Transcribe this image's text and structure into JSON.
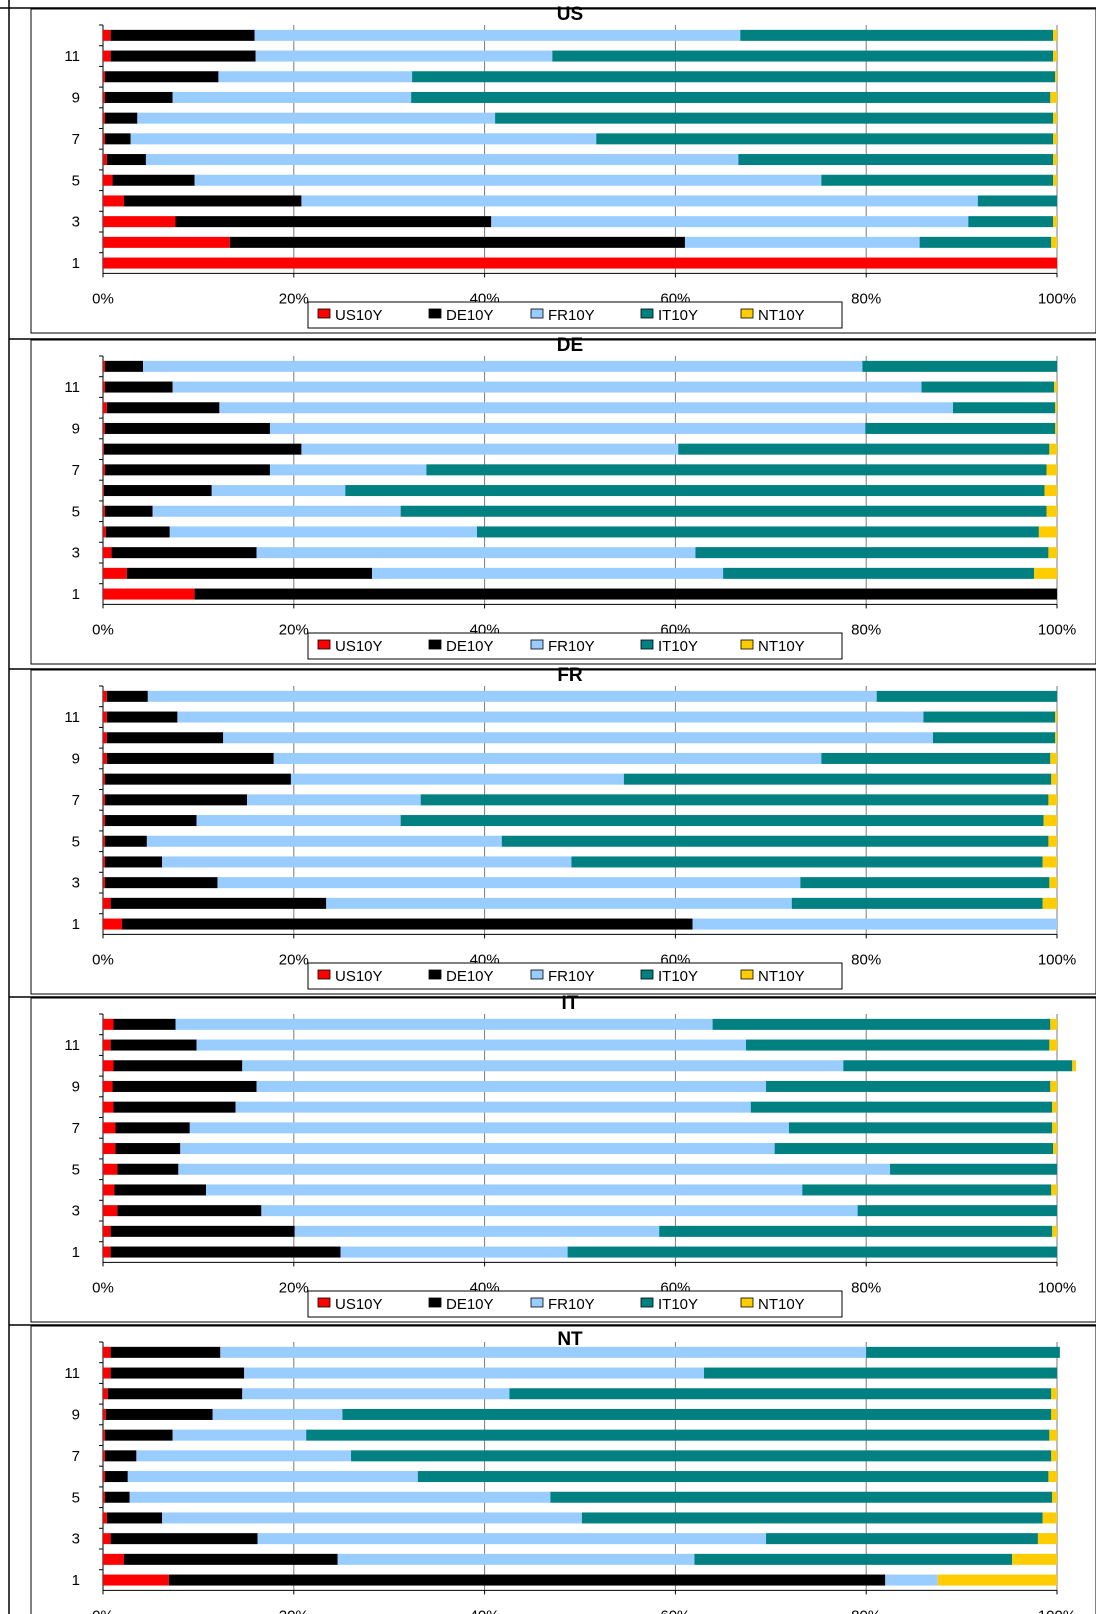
{
  "legend_labels": [
    "US10Y",
    "DE10Y",
    "FR10Y",
    "IT10Y",
    "NT10Y"
  ],
  "colors": {
    "US10Y": "#ff0000",
    "DE10Y": "#000000",
    "FR10Y": "#99ccff",
    "IT10Y": "#008080",
    "NT10Y": "#ffcc00"
  },
  "y_tick_labels": [
    "1",
    "3",
    "5",
    "7",
    "9",
    "11"
  ],
  "x_tick_labels": [
    "0%",
    "20%",
    "40%",
    "60%",
    "80%",
    "100%"
  ],
  "chart_data": [
    {
      "type": "bar",
      "stacked": "percent",
      "orientation": "horizontal",
      "title": "US",
      "categories": [
        1,
        2,
        3,
        4,
        5,
        6,
        7,
        8,
        9,
        10,
        11,
        12
      ],
      "xlim": [
        0,
        100
      ],
      "legend": "bottom",
      "grid": true,
      "series": [
        {
          "name": "US10Y",
          "values": [
            100,
            13.3,
            7.6,
            2.2,
            1.0,
            0.4,
            0.2,
            0.2,
            0.2,
            0.2,
            0.8,
            0.8
          ]
        },
        {
          "name": "DE10Y",
          "values": [
            0,
            47.7,
            33.1,
            18.6,
            8.6,
            4.1,
            2.7,
            3.4,
            7.1,
            11.9,
            15.2,
            15.1
          ]
        },
        {
          "name": "FR10Y",
          "values": [
            0,
            24.6,
            50.0,
            70.9,
            65.7,
            62.1,
            48.8,
            37.5,
            25.0,
            20.3,
            31.1,
            50.9
          ]
        },
        {
          "name": "IT10Y",
          "values": [
            0,
            13.8,
            8.9,
            8.3,
            24.3,
            33.0,
            47.9,
            58.5,
            67.0,
            67.4,
            52.5,
            32.8
          ]
        },
        {
          "name": "NT10Y",
          "values": [
            0,
            0.6,
            0.4,
            0.0,
            0.4,
            0.4,
            0.4,
            0.4,
            0.7,
            0.2,
            0.4,
            0.4
          ]
        }
      ]
    },
    {
      "type": "bar",
      "stacked": "percent",
      "orientation": "horizontal",
      "title": "DE",
      "categories": [
        1,
        2,
        3,
        4,
        5,
        6,
        7,
        8,
        9,
        10,
        11,
        12
      ],
      "xlim": [
        0,
        100
      ],
      "legend": "bottom",
      "grid": true,
      "series": [
        {
          "name": "US10Y",
          "values": [
            9.6,
            2.5,
            0.9,
            0.3,
            0.2,
            0.1,
            0.2,
            0.1,
            0.2,
            0.4,
            0.2,
            0.2
          ]
        },
        {
          "name": "DE10Y",
          "values": [
            90.4,
            25.7,
            15.2,
            6.7,
            5.0,
            11.3,
            17.3,
            20.7,
            17.3,
            11.8,
            7.1,
            4.0
          ]
        },
        {
          "name": "FR10Y",
          "values": [
            0,
            36.8,
            46.0,
            32.2,
            26.0,
            14.0,
            16.4,
            39.5,
            62.4,
            76.9,
            78.5,
            75.4
          ]
        },
        {
          "name": "IT10Y",
          "values": [
            0,
            32.6,
            37.0,
            58.9,
            67.7,
            73.3,
            65.0,
            38.9,
            19.9,
            10.7,
            13.9,
            20.4
          ]
        },
        {
          "name": "NT10Y",
          "values": [
            0,
            2.4,
            0.9,
            1.9,
            1.1,
            1.3,
            1.1,
            0.8,
            0.2,
            0.2,
            0.3,
            0.0
          ]
        }
      ]
    },
    {
      "type": "bar",
      "stacked": "percent",
      "orientation": "horizontal",
      "title": "FR",
      "categories": [
        1,
        2,
        3,
        4,
        5,
        6,
        7,
        8,
        9,
        10,
        11,
        12
      ],
      "xlim": [
        0,
        100
      ],
      "legend": "bottom",
      "grid": true,
      "series": [
        {
          "name": "US10Y",
          "values": [
            2.0,
            0.8,
            0.2,
            0.2,
            0.2,
            0.2,
            0.2,
            0.2,
            0.4,
            0.4,
            0.4,
            0.4
          ]
        },
        {
          "name": "DE10Y",
          "values": [
            59.8,
            22.6,
            11.8,
            6.0,
            4.4,
            9.6,
            14.9,
            19.5,
            17.5,
            12.2,
            7.4,
            4.3
          ]
        },
        {
          "name": "FR10Y",
          "values": [
            38.2,
            48.8,
            61.1,
            42.9,
            37.2,
            21.4,
            18.2,
            34.9,
            57.4,
            74.4,
            78.2,
            76.4
          ]
        },
        {
          "name": "IT10Y",
          "values": [
            0,
            26.3,
            26.1,
            49.4,
            57.3,
            67.4,
            65.8,
            44.8,
            24.0,
            12.8,
            13.8,
            18.9
          ]
        },
        {
          "name": "NT10Y",
          "values": [
            0,
            1.5,
            0.8,
            1.5,
            0.9,
            1.4,
            0.9,
            0.6,
            0.7,
            0.2,
            0.2,
            0.0
          ]
        }
      ]
    },
    {
      "type": "bar",
      "stacked": "percent",
      "orientation": "horizontal",
      "title": "IT",
      "categories": [
        1,
        2,
        3,
        4,
        5,
        6,
        7,
        8,
        9,
        10,
        11,
        12
      ],
      "xlim": [
        0,
        100
      ],
      "legend": "bottom",
      "grid": true,
      "series": [
        {
          "name": "US10Y",
          "values": [
            0.8,
            0.8,
            1.5,
            1.2,
            1.5,
            1.3,
            1.3,
            1.1,
            1.0,
            1.1,
            0.8,
            1.1
          ]
        },
        {
          "name": "DE10Y",
          "values": [
            24.1,
            19.3,
            15.1,
            9.6,
            6.4,
            6.8,
            7.8,
            12.8,
            15.1,
            13.5,
            9.0,
            6.5
          ]
        },
        {
          "name": "FR10Y",
          "values": [
            23.8,
            38.2,
            62.5,
            62.5,
            74.6,
            62.3,
            62.8,
            54.0,
            53.4,
            63.0,
            57.6,
            56.3
          ]
        },
        {
          "name": "IT10Y",
          "values": [
            51.3,
            41.2,
            20.9,
            26.1,
            17.5,
            29.2,
            27.6,
            31.6,
            29.8,
            24.0,
            31.8,
            35.4
          ]
        },
        {
          "name": "NT10Y",
          "values": [
            0,
            0.5,
            0.0,
            0.6,
            0.0,
            0.4,
            0.5,
            0.5,
            0.7,
            0.4,
            0.8,
            0.7
          ]
        }
      ]
    },
    {
      "type": "bar",
      "stacked": "percent",
      "orientation": "horizontal",
      "title": "NT",
      "categories": [
        1,
        2,
        3,
        4,
        5,
        6,
        7,
        8,
        9,
        10,
        11,
        12
      ],
      "xlim": [
        0,
        100
      ],
      "legend": "bottom",
      "grid": true,
      "series": [
        {
          "name": "US10Y",
          "values": [
            6.9,
            2.2,
            0.8,
            0.4,
            0.2,
            0.2,
            0.2,
            0.2,
            0.3,
            0.5,
            0.8,
            0.8
          ]
        },
        {
          "name": "DE10Y",
          "values": [
            75.1,
            22.4,
            15.4,
            5.8,
            2.6,
            2.4,
            3.3,
            7.1,
            11.2,
            14.1,
            14.0,
            11.5
          ]
        },
        {
          "name": "FR10Y",
          "values": [
            5.5,
            37.4,
            53.3,
            44.0,
            44.1,
            30.4,
            22.5,
            14.0,
            13.6,
            28.0,
            48.2,
            67.7
          ]
        },
        {
          "name": "IT10Y",
          "values": [
            0,
            33.3,
            28.5,
            48.3,
            52.6,
            66.1,
            73.4,
            77.9,
            74.3,
            56.8,
            37.0,
            20.3
          ]
        },
        {
          "name": "NT10Y",
          "values": [
            12.5,
            4.7,
            2.0,
            1.5,
            0.5,
            0.9,
            0.6,
            0.8,
            0.6,
            0.6,
            0.0,
            0.0
          ]
        }
      ]
    }
  ]
}
